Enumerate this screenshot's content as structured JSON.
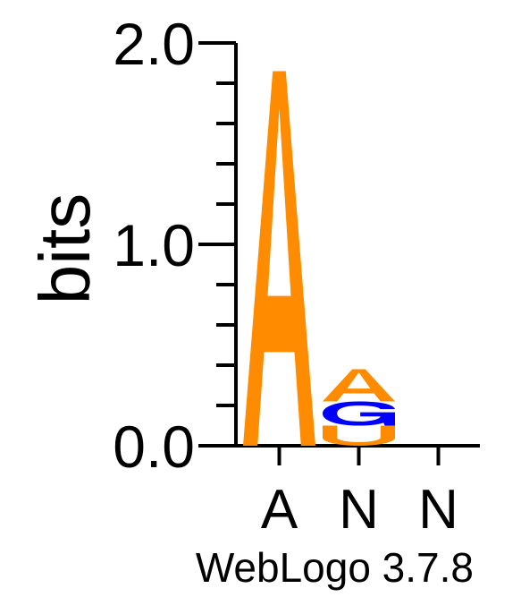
{
  "chart_data": {
    "type": "sequence-logo",
    "ylabel": "bits",
    "ylim": [
      0,
      2.0
    ],
    "y_ticks": [
      {
        "value": 0.0,
        "label": "0.0"
      },
      {
        "value": 1.0,
        "label": "1.0"
      },
      {
        "value": 2.0,
        "label": "2.0"
      }
    ],
    "y_minor_step": 0.2,
    "positions": [
      {
        "label": "A",
        "stack": [
          {
            "letter": "A",
            "height": 1.86,
            "color": "#ff8c00"
          }
        ]
      },
      {
        "label": "N",
        "stack": [
          {
            "letter": "U",
            "height": 0.1,
            "color": "#ff8c00"
          },
          {
            "letter": "G",
            "height": 0.12,
            "color": "#0000ff"
          },
          {
            "letter": "A",
            "height": 0.16,
            "color": "#ff8c00"
          }
        ]
      },
      {
        "label": "N",
        "stack": []
      }
    ],
    "grid": false,
    "legend": "none"
  },
  "footer": "WebLogo 3.7.8"
}
